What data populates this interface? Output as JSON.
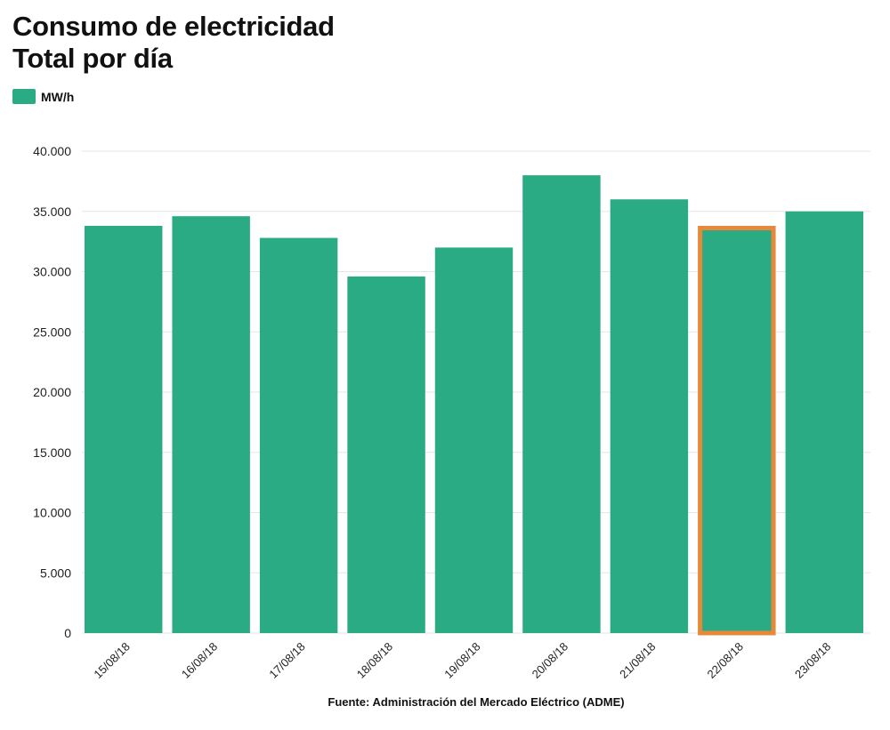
{
  "title": {
    "line1": "Consumo de electricidad",
    "line2": "Total por día"
  },
  "legend": {
    "label": "MW/h",
    "color": "#2bab84"
  },
  "source": "Fuente: Administración del Mercado Eléctrico (ADME)",
  "colors": {
    "bar": "#2bab84",
    "highlight": "#e8883a",
    "grid": "#e6e6e6",
    "text": "#222222"
  },
  "chart_data": {
    "type": "bar",
    "categories": [
      "15/08/18",
      "16/08/18",
      "17/08/18",
      "18/08/18",
      "19/08/18",
      "20/08/18",
      "21/08/18",
      "22/08/18",
      "23/08/18"
    ],
    "series": [
      {
        "name": "MW/h",
        "values": [
          33800,
          34600,
          32800,
          29600,
          32000,
          38000,
          36000,
          33800,
          35000
        ]
      }
    ],
    "highlighted_category": "22/08/18",
    "ylim": [
      0,
      40000
    ],
    "yticks": [
      "0",
      "5.000",
      "10.000",
      "15.000",
      "20.000",
      "25.000",
      "30.000",
      "35.000",
      "40.000"
    ],
    "xlabel": "",
    "ylabel": "",
    "grid": true,
    "legend_position": "top-left"
  }
}
